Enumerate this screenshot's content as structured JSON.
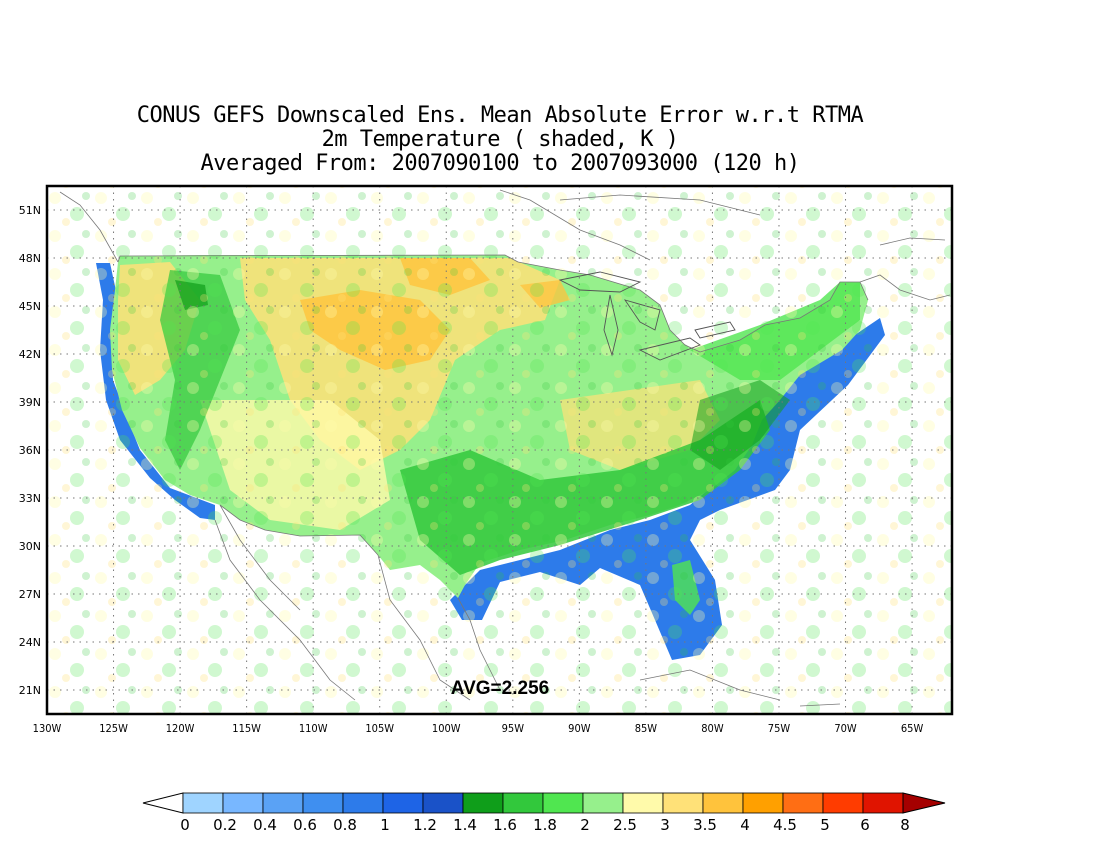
{
  "title": {
    "line1": "CONUS GEFS Downscaled Ens. Mean Absolute Error w.r.t RTMA",
    "line2": "2m Temperature ( shaded, K )",
    "line3": "Averaged From: 2007090100 to 2007093000 (120 h)"
  },
  "map": {
    "lon_range": [
      -130,
      -62
    ],
    "lat_range": [
      19.5,
      52.5
    ],
    "lon_ticks": [
      "130W",
      "125W",
      "120W",
      "115W",
      "110W",
      "105W",
      "100W",
      "95W",
      "90W",
      "85W",
      "80W",
      "75W",
      "70W",
      "65W"
    ],
    "lat_ticks": [
      "21N",
      "24N",
      "27N",
      "30N",
      "33N",
      "36N",
      "39N",
      "42N",
      "45N",
      "48N",
      "51N"
    ],
    "grid": "dotted",
    "annotation": "AVG=2.256"
  },
  "colorbar": {
    "labels": [
      "0",
      "0.2",
      "0.4",
      "0.6",
      "0.8",
      "1",
      "1.2",
      "1.4",
      "1.6",
      "1.8",
      "2",
      "2.5",
      "3",
      "3.5",
      "4",
      "4.5",
      "5",
      "6",
      "8"
    ],
    "colors": [
      "#9fd4ff",
      "#78b7ff",
      "#5aa2f5",
      "#3f8ff0",
      "#2d7bea",
      "#1e64e6",
      "#1a52c8",
      "#0f9e1a",
      "#32c83c",
      "#50e650",
      "#96f08c",
      "#fffaaa",
      "#ffe178",
      "#ffc33c",
      "#ffa000",
      "#ff6e14",
      "#ff3c00",
      "#e01400",
      "#a50000"
    ]
  }
}
